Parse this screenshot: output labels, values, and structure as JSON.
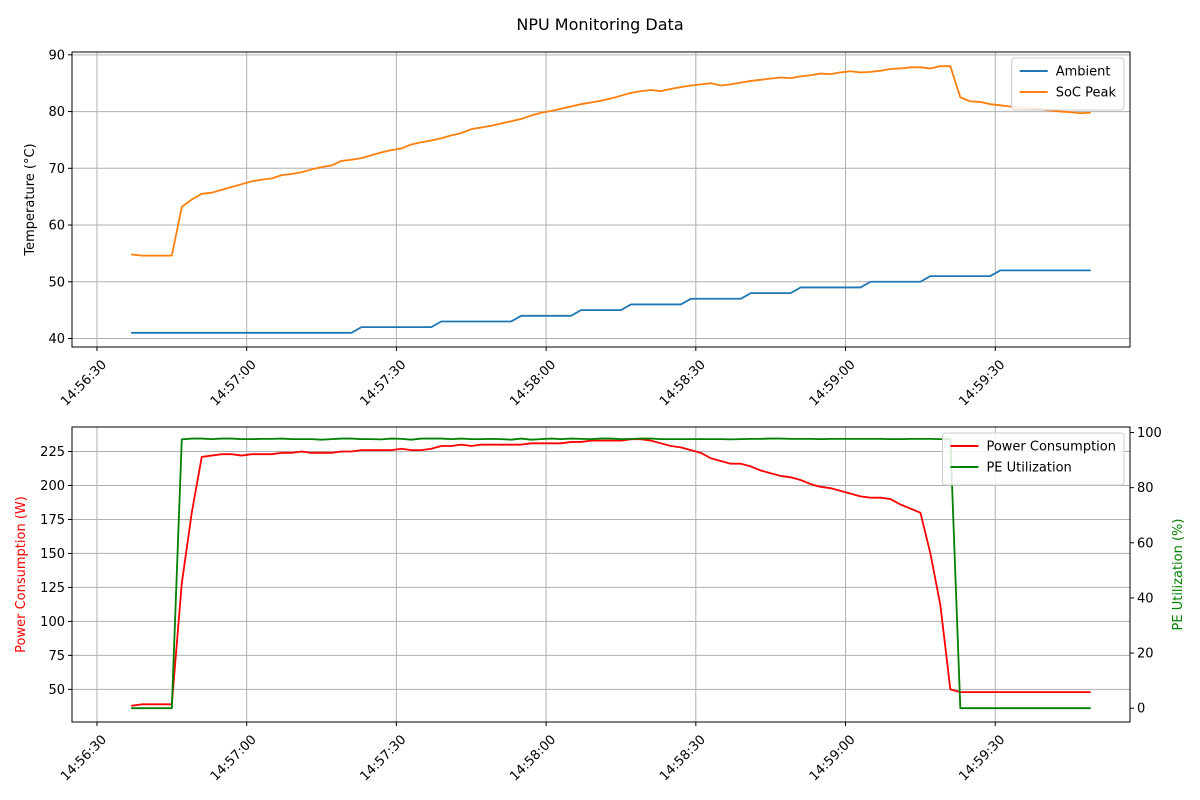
{
  "figure_title": "NPU Monitoring Data",
  "chart_data": [
    {
      "type": "line",
      "xlabel": "",
      "ylabel": "Temperature (°C)",
      "x_range": [
        "14:56:25",
        "14:59:57"
      ],
      "ylim": [
        38.5,
        90.5
      ],
      "yticks": [
        40,
        50,
        60,
        70,
        80,
        90
      ],
      "xticks": [
        "14:56:30",
        "14:57:00",
        "14:57:30",
        "14:58:00",
        "14:58:30",
        "14:59:00",
        "14:59:30"
      ],
      "grid": true,
      "legend": "top-right",
      "x": [
        "14:56:37",
        "14:56:39",
        "14:56:41",
        "14:56:43",
        "14:56:45",
        "14:56:47",
        "14:56:49",
        "14:56:51",
        "14:56:53",
        "14:56:55",
        "14:56:57",
        "14:56:59",
        "14:57:01",
        "14:57:03",
        "14:57:05",
        "14:57:07",
        "14:57:09",
        "14:57:11",
        "14:57:13",
        "14:57:15",
        "14:57:17",
        "14:57:19",
        "14:57:21",
        "14:57:23",
        "14:57:25",
        "14:57:27",
        "14:57:29",
        "14:57:31",
        "14:57:33",
        "14:57:35",
        "14:57:37",
        "14:57:39",
        "14:57:41",
        "14:57:43",
        "14:57:45",
        "14:57:47",
        "14:57:49",
        "14:57:51",
        "14:57:53",
        "14:57:55",
        "14:57:57",
        "14:57:59",
        "14:58:01",
        "14:58:03",
        "14:58:05",
        "14:58:07",
        "14:58:09",
        "14:58:11",
        "14:58:13",
        "14:58:15",
        "14:58:17",
        "14:58:19",
        "14:58:21",
        "14:58:23",
        "14:58:25",
        "14:58:27",
        "14:58:29",
        "14:58:31",
        "14:58:33",
        "14:58:35",
        "14:58:37",
        "14:58:39",
        "14:58:41",
        "14:58:43",
        "14:58:45",
        "14:58:47",
        "14:58:49",
        "14:58:51",
        "14:58:53",
        "14:58:55",
        "14:58:57",
        "14:58:59",
        "14:59:01",
        "14:59:03",
        "14:59:05",
        "14:59:07",
        "14:59:09",
        "14:59:11",
        "14:59:13",
        "14:59:15",
        "14:59:17",
        "14:59:19",
        "14:59:21",
        "14:59:23",
        "14:59:25",
        "14:59:27",
        "14:59:29",
        "14:59:31",
        "14:59:33",
        "14:59:35",
        "14:59:37",
        "14:59:39",
        "14:59:41",
        "14:59:43",
        "14:59:45",
        "14:59:47",
        "14:59:49"
      ],
      "series": [
        {
          "name": "Ambient",
          "color": "#1f77b4",
          "values": [
            41,
            41,
            41,
            41,
            41,
            41,
            41,
            41,
            41,
            41,
            41,
            41,
            41,
            41,
            41,
            41,
            41,
            41,
            41,
            41,
            41,
            41,
            41,
            42,
            42,
            42,
            42,
            42,
            42,
            42,
            42,
            43,
            43,
            43,
            43,
            43,
            43,
            43,
            43,
            44,
            44,
            44,
            44,
            44,
            44,
            45,
            45,
            45,
            45,
            45,
            46,
            46,
            46,
            46,
            46,
            46,
            47,
            47,
            47,
            47,
            47,
            47,
            48,
            48,
            48,
            48,
            48,
            49,
            49,
            49,
            49,
            49,
            49,
            49,
            50,
            50,
            50,
            50,
            50,
            50,
            51,
            51,
            51,
            51,
            51,
            51,
            51,
            52,
            52,
            52,
            52,
            52,
            52,
            52,
            52,
            52,
            52
          ]
        },
        {
          "name": "SoC Peak",
          "color": "#ff7f0e",
          "values": [
            54.8,
            54.6,
            54.6,
            54.6,
            54.6,
            63.2,
            64.5,
            65.5,
            65.7,
            66.2,
            66.7,
            67.2,
            67.7,
            68.0,
            68.2,
            68.8,
            69.0,
            69.3,
            69.8,
            70.2,
            70.5,
            71.3,
            71.5,
            71.8,
            72.3,
            72.8,
            73.2,
            73.5,
            74.2,
            74.6,
            74.9,
            75.3,
            75.8,
            76.2,
            76.9,
            77.2,
            77.5,
            77.9,
            78.3,
            78.7,
            79.3,
            79.8,
            80.1,
            80.5,
            80.9,
            81.3,
            81.6,
            81.9,
            82.3,
            82.8,
            83.3,
            83.6,
            83.8,
            83.6,
            84.0,
            84.3,
            84.6,
            84.8,
            85.0,
            84.6,
            84.8,
            85.1,
            85.4,
            85.6,
            85.8,
            86.0,
            85.9,
            86.2,
            86.4,
            86.7,
            86.6,
            86.9,
            87.1,
            86.9,
            87.0,
            87.2,
            87.5,
            87.6,
            87.8,
            87.8,
            87.6,
            88.0,
            88.0,
            82.5,
            81.8,
            81.7,
            81.3,
            81.1,
            80.9,
            80.7,
            80.5,
            80.4,
            80.2,
            80.0,
            79.9,
            79.7,
            79.8
          ]
        }
      ]
    },
    {
      "type": "line",
      "xlabel": "",
      "ylabel": "Power Consumption (W)",
      "ylabel_right": "PE Utilization (%)",
      "x_range": [
        "14:56:25",
        "14:59:57"
      ],
      "ylim": [
        26,
        243
      ],
      "ylim_right": [
        -5,
        102
      ],
      "yticks": [
        50,
        75,
        100,
        125,
        150,
        175,
        200,
        225
      ],
      "yticks_right": [
        0,
        20,
        40,
        60,
        80,
        100
      ],
      "xticks": [
        "14:56:30",
        "14:57:00",
        "14:57:30",
        "14:58:00",
        "14:58:30",
        "14:59:00",
        "14:59:30"
      ],
      "grid": true,
      "legend": "top-right",
      "x": [
        "14:56:37",
        "14:56:39",
        "14:56:41",
        "14:56:43",
        "14:56:45",
        "14:56:47",
        "14:56:49",
        "14:56:51",
        "14:56:53",
        "14:56:55",
        "14:56:57",
        "14:56:59",
        "14:57:01",
        "14:57:03",
        "14:57:05",
        "14:57:07",
        "14:57:09",
        "14:57:11",
        "14:57:13",
        "14:57:15",
        "14:57:17",
        "14:57:19",
        "14:57:21",
        "14:57:23",
        "14:57:25",
        "14:57:27",
        "14:57:29",
        "14:57:31",
        "14:57:33",
        "14:57:35",
        "14:57:37",
        "14:57:39",
        "14:57:41",
        "14:57:43",
        "14:57:45",
        "14:57:47",
        "14:57:49",
        "14:57:51",
        "14:57:53",
        "14:57:55",
        "14:57:57",
        "14:57:59",
        "14:58:01",
        "14:58:03",
        "14:58:05",
        "14:58:07",
        "14:58:09",
        "14:58:11",
        "14:58:13",
        "14:58:15",
        "14:58:17",
        "14:58:19",
        "14:58:21",
        "14:58:23",
        "14:58:25",
        "14:58:27",
        "14:58:29",
        "14:58:31",
        "14:58:33",
        "14:58:35",
        "14:58:37",
        "14:58:39",
        "14:58:41",
        "14:58:43",
        "14:58:45",
        "14:58:47",
        "14:58:49",
        "14:58:51",
        "14:58:53",
        "14:58:55",
        "14:58:57",
        "14:58:59",
        "14:59:01",
        "14:59:03",
        "14:59:05",
        "14:59:07",
        "14:59:09",
        "14:59:11",
        "14:59:13",
        "14:59:15",
        "14:59:17",
        "14:59:19",
        "14:59:21",
        "14:59:23",
        "14:59:25",
        "14:59:27",
        "14:59:29",
        "14:59:31",
        "14:59:33",
        "14:59:35",
        "14:59:37",
        "14:59:39",
        "14:59:41",
        "14:59:43",
        "14:59:45",
        "14:59:47",
        "14:59:49"
      ],
      "series": [
        {
          "name": "Power Consumption",
          "color": "#ff0000",
          "axis": "left",
          "values": [
            38,
            39,
            39,
            39,
            39,
            128,
            180,
            221,
            222,
            223,
            223,
            222,
            223,
            223,
            223,
            224,
            224,
            225,
            224,
            224,
            224,
            225,
            225,
            226,
            226,
            226,
            226,
            227,
            226,
            226,
            227,
            229,
            229,
            230,
            229,
            230,
            230,
            230,
            230,
            230,
            231,
            231,
            231,
            231,
            232,
            232,
            233,
            233,
            233,
            233,
            234,
            234,
            233,
            231,
            229,
            228,
            226,
            224,
            220,
            218,
            216,
            216,
            214,
            211,
            209,
            207,
            206,
            204,
            201,
            199,
            198,
            196,
            194,
            192,
            191,
            191,
            190,
            186,
            183,
            180,
            150,
            112,
            50,
            48,
            48,
            48,
            48,
            48,
            48,
            48,
            48,
            48,
            48,
            48,
            48,
            48,
            48
          ]
        },
        {
          "name": "PE Utilization",
          "color": "#008000",
          "axis": "right",
          "values": [
            0,
            0,
            0,
            0,
            0,
            97.5,
            97.8,
            97.8,
            97.6,
            97.8,
            97.8,
            97.6,
            97.6,
            97.7,
            97.7,
            97.8,
            97.6,
            97.6,
            97.6,
            97.4,
            97.6,
            97.8,
            97.8,
            97.6,
            97.6,
            97.5,
            97.8,
            97.7,
            97.4,
            97.8,
            97.8,
            97.8,
            97.6,
            97.8,
            97.6,
            97.6,
            97.7,
            97.6,
            97.4,
            97.8,
            97.4,
            97.6,
            97.8,
            97.6,
            97.8,
            97.7,
            97.6,
            97.8,
            97.8,
            97.6,
            97.7,
            97.8,
            97.8,
            97.6,
            97.6,
            97.6,
            97.6,
            97.6,
            97.6,
            97.6,
            97.5,
            97.6,
            97.7,
            97.7,
            97.8,
            97.8,
            97.7,
            97.7,
            97.7,
            97.6,
            97.7,
            97.7,
            97.7,
            97.7,
            97.7,
            97.7,
            97.6,
            97.6,
            97.7,
            97.7,
            97.7,
            97.6,
            97.6,
            0,
            0,
            0,
            0,
            0,
            0,
            0,
            0,
            0,
            0,
            0,
            0,
            0,
            0
          ]
        }
      ]
    }
  ]
}
